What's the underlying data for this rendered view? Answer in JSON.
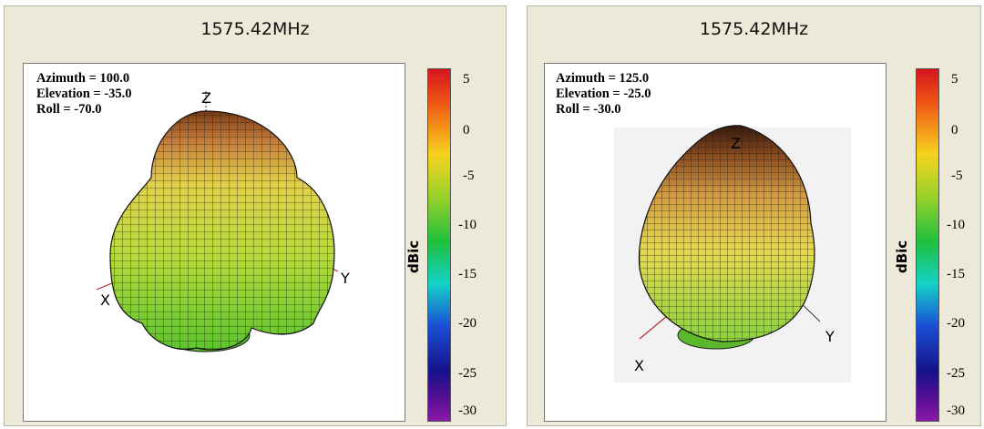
{
  "panels": [
    {
      "title": "1575.42MHz",
      "azimuth": "Azimuth = 100.0",
      "elevation": "Elevation = -35.0",
      "roll": "Roll = -70.0",
      "axes": {
        "x": "X",
        "y": "Y",
        "z": "Z"
      },
      "colorbar_unit": "dBic",
      "colorbar_ticks": [
        "5",
        "0",
        "-5",
        "-10",
        "-15",
        "-20",
        "-25",
        "-30"
      ]
    },
    {
      "title": "1575.42MHz",
      "azimuth": "Azimuth = 125.0",
      "elevation": "Elevation = -25.0",
      "roll": "Roll = -30.0",
      "axes": {
        "x": "X",
        "y": "Y",
        "z": "Z"
      },
      "colorbar_unit": "dBic",
      "colorbar_ticks": [
        "5",
        "0",
        "-5",
        "-10",
        "-15",
        "-20",
        "-25",
        "-30"
      ]
    }
  ],
  "colors": {
    "pattern_top": "#9a4a1e",
    "pattern_mid": "#e0d040",
    "pattern_low": "#6fcc2e",
    "mesh": "#1a1a1a"
  }
}
